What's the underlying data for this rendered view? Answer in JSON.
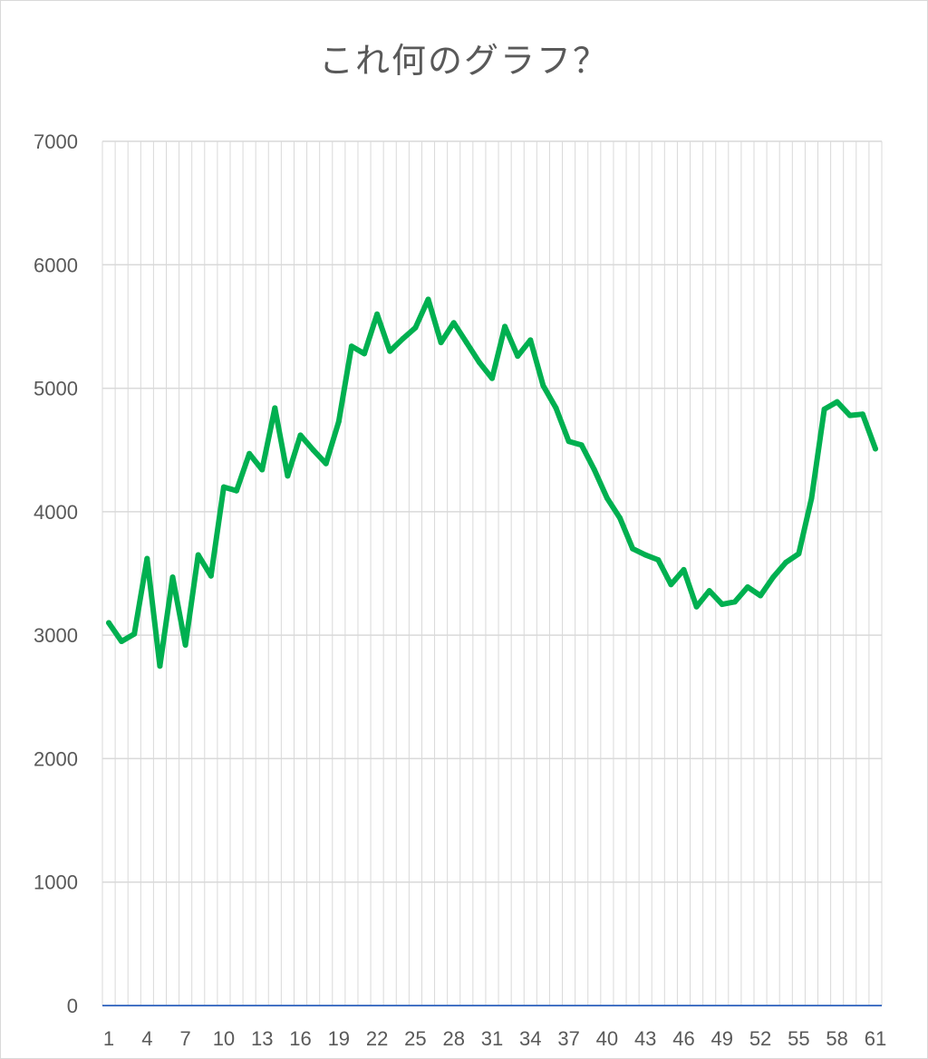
{
  "chart_data": {
    "type": "line",
    "title": "これ何のグラフ？",
    "xlabel": "",
    "ylabel": "",
    "ylim": [
      0,
      7000
    ],
    "yticks": [
      0,
      1000,
      2000,
      3000,
      4000,
      5000,
      6000,
      7000
    ],
    "xtick_labels": [
      "1",
      "4",
      "7",
      "10",
      "13",
      "16",
      "19",
      "22",
      "25",
      "28",
      "31",
      "34",
      "37",
      "40",
      "43",
      "46",
      "49",
      "52",
      "55",
      "58",
      "61"
    ],
    "grid": "both",
    "legend": "none",
    "series": [
      {
        "color": "#00b050",
        "x": [
          1,
          2,
          3,
          4,
          5,
          6,
          7,
          8,
          9,
          10,
          11,
          12,
          13,
          14,
          15,
          16,
          17,
          18,
          19,
          20,
          21,
          22,
          23,
          24,
          25,
          26,
          27,
          28,
          29,
          30,
          31,
          32,
          33,
          34,
          35,
          36,
          37,
          38,
          39,
          40,
          41,
          42,
          43,
          44,
          45,
          46,
          47,
          48,
          49,
          50,
          51,
          52,
          53,
          54,
          55,
          56,
          57,
          58,
          59,
          60,
          61
        ],
        "values": [
          3100,
          2950,
          3010,
          3620,
          2750,
          3470,
          2920,
          3650,
          3480,
          4200,
          4170,
          4470,
          4340,
          4840,
          4290,
          4620,
          4500,
          4390,
          4730,
          5340,
          5280,
          5600,
          5300,
          5400,
          5490,
          5720,
          5370,
          5530,
          5370,
          5210,
          5080,
          5500,
          5260,
          5390,
          5020,
          4840,
          4570,
          4540,
          4340,
          4110,
          3950,
          3700,
          3650,
          3610,
          3410,
          3530,
          3230,
          3360,
          3250,
          3270,
          3390,
          3320,
          3470,
          3590,
          3660,
          4110,
          4830,
          4890,
          4780,
          4790,
          4510
        ]
      }
    ]
  },
  "colors": {
    "series": "#00b050",
    "grid": "#d9d9d9",
    "baseline": "#4472c4",
    "text": "#595959"
  }
}
